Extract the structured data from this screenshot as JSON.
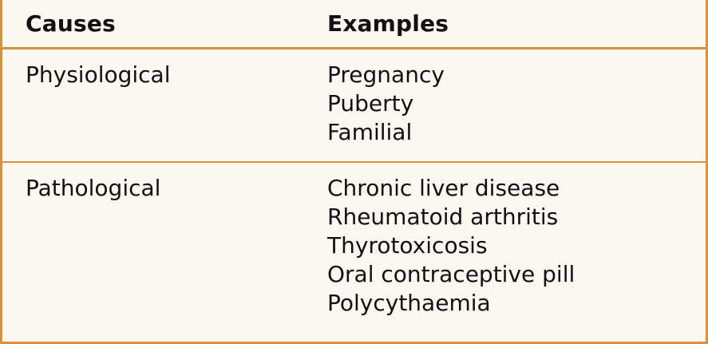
{
  "table": {
    "headers": {
      "causes": "Causes",
      "examples": "Examples"
    },
    "rows": [
      {
        "cause": "Physiological",
        "examples": [
          "Pregnancy",
          "Puberty",
          "Familial"
        ]
      },
      {
        "cause": "Pathological",
        "examples": [
          "Chronic liver disease",
          "Rheumatoid arthritis",
          "Thyrotoxicosis",
          "Oral contraceptive pill",
          "Polycythaemia"
        ]
      }
    ]
  },
  "colors": {
    "border": "#d9913e",
    "background": "#fdf7f1",
    "text": "#111111"
  }
}
